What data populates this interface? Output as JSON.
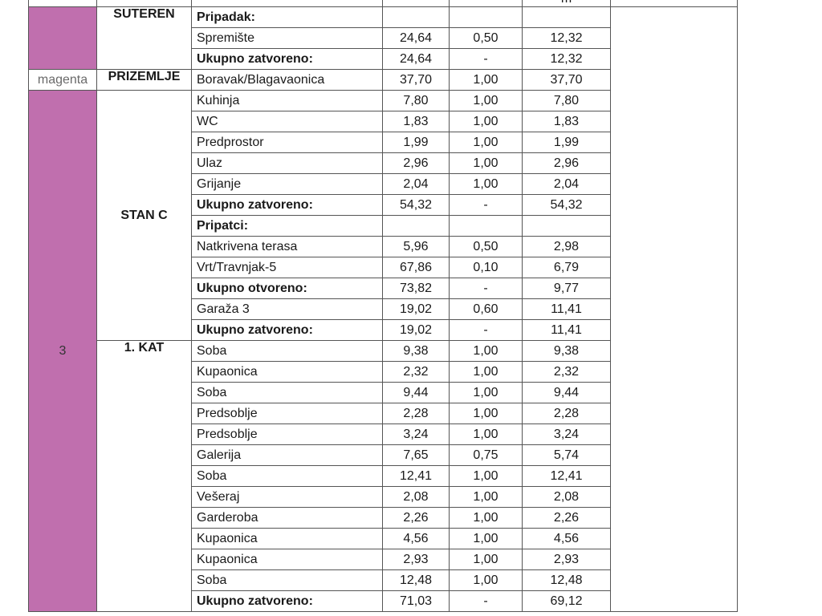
{
  "header": {
    "unit_label": "m"
  },
  "colors": {
    "floor_marker": "#c06fae"
  },
  "building": {
    "number": "3",
    "marker_label": "magenta"
  },
  "groups": [
    {
      "label": "SUTEREN",
      "rows": [
        {
          "name": "Pripadak:",
          "bold": true,
          "area": "",
          "coef": "",
          "net": ""
        },
        {
          "name": "Spremište",
          "bold": false,
          "area": "24,64",
          "coef": "0,50",
          "net": "12,32"
        },
        {
          "name": "Ukupno zatvoreno:",
          "bold": true,
          "area": "24,64",
          "coef": "-",
          "net": "12,32"
        }
      ]
    },
    {
      "label": "PRIZEMLJE",
      "rows": [
        {
          "name": "Boravak/Blagavaonica",
          "bold": false,
          "area": "37,70",
          "coef": "1,00",
          "net": "37,70"
        }
      ]
    },
    {
      "label": "STAN C",
      "rows": [
        {
          "name": "Kuhinja",
          "bold": false,
          "area": "7,80",
          "coef": "1,00",
          "net": "7,80"
        },
        {
          "name": "WC",
          "bold": false,
          "area": "1,83",
          "coef": "1,00",
          "net": "1,83"
        },
        {
          "name": "Predprostor",
          "bold": false,
          "area": "1,99",
          "coef": "1,00",
          "net": "1,99"
        },
        {
          "name": "Ulaz",
          "bold": false,
          "area": "2,96",
          "coef": "1,00",
          "net": "2,96"
        },
        {
          "name": "Grijanje",
          "bold": false,
          "area": "2,04",
          "coef": "1,00",
          "net": "2,04"
        },
        {
          "name": "Ukupno zatvoreno:",
          "bold": true,
          "area": "54,32",
          "coef": "-",
          "net": "54,32"
        },
        {
          "name": "Pripatci:",
          "bold": true,
          "area": "",
          "coef": "",
          "net": ""
        },
        {
          "name": "Natkrivena terasa",
          "bold": false,
          "area": "5,96",
          "coef": "0,50",
          "net": "2,98"
        },
        {
          "name": "Vrt/Travnjak-5",
          "bold": false,
          "area": "67,86",
          "coef": "0,10",
          "net": "6,79"
        },
        {
          "name": "Ukupno otvoreno:",
          "bold": true,
          "area": "73,82",
          "coef": "-",
          "net": "9,77"
        },
        {
          "name": "Garaža 3",
          "bold": false,
          "area": "19,02",
          "coef": "0,60",
          "net": "11,41"
        },
        {
          "name": "Ukupno zatvoreno:",
          "bold": true,
          "area": "19,02",
          "coef": "-",
          "net": "11,41"
        }
      ]
    },
    {
      "label": "1. KAT",
      "rows": [
        {
          "name": "Soba",
          "bold": false,
          "area": "9,38",
          "coef": "1,00",
          "net": "9,38"
        },
        {
          "name": "Kupaonica",
          "bold": false,
          "area": "2,32",
          "coef": "1,00",
          "net": "2,32"
        },
        {
          "name": "Soba",
          "bold": false,
          "area": "9,44",
          "coef": "1,00",
          "net": "9,44"
        },
        {
          "name": "Predsoblje",
          "bold": false,
          "area": "2,28",
          "coef": "1,00",
          "net": "2,28"
        },
        {
          "name": "Predsoblje",
          "bold": false,
          "area": "3,24",
          "coef": "1,00",
          "net": "3,24"
        },
        {
          "name": "Galerija",
          "bold": false,
          "area": "7,65",
          "coef": "0,75",
          "net": "5,74"
        },
        {
          "name": "Soba",
          "bold": false,
          "area": "12,41",
          "coef": "1,00",
          "net": "12,41"
        },
        {
          "name": "Vešeraj",
          "bold": false,
          "area": "2,08",
          "coef": "1,00",
          "net": "2,08"
        },
        {
          "name": "Garderoba",
          "bold": false,
          "area": "2,26",
          "coef": "1,00",
          "net": "2,26"
        },
        {
          "name": "Kupaonica",
          "bold": false,
          "area": "4,56",
          "coef": "1,00",
          "net": "4,56"
        },
        {
          "name": "Kupaonica",
          "bold": false,
          "area": "2,93",
          "coef": "1,00",
          "net": "2,93"
        },
        {
          "name": "Soba",
          "bold": false,
          "area": "12,48",
          "coef": "1,00",
          "net": "12,48"
        },
        {
          "name": "Ukupno zatvoreno:",
          "bold": true,
          "area": "71,03",
          "coef": "-",
          "net": "69,12"
        }
      ]
    }
  ]
}
